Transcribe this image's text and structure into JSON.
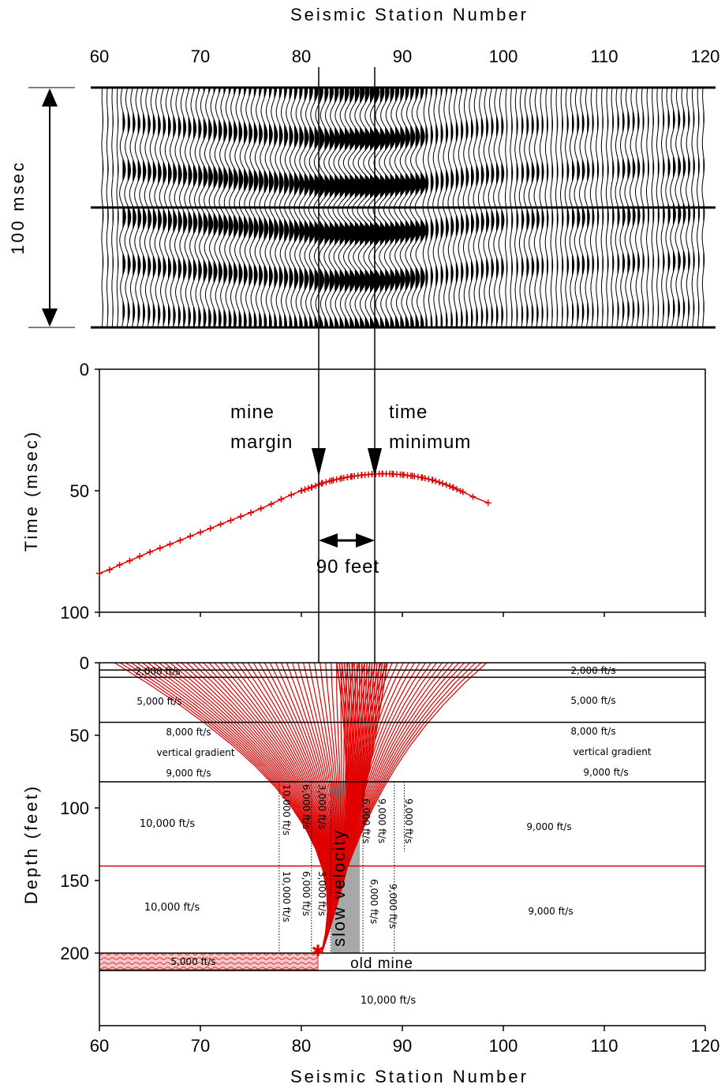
{
  "figure": {
    "top_xlabel": "Seismic Station Number",
    "bottom_xlabel": "Seismic Station Number",
    "seismogram_time_label": "100 msec",
    "time_ylabel": "Time (msec)",
    "depth_ylabel": "Depth (feet)",
    "x_ticks": [
      "60",
      "70",
      "80",
      "90",
      "100",
      "110",
      "120"
    ],
    "time_ticks": [
      "0",
      "50",
      "100"
    ],
    "depth_ticks": [
      "0",
      "50",
      "100",
      "150",
      "200"
    ],
    "annotations": {
      "mine_margin_1": "mine",
      "mine_margin_2": "margin",
      "time_min_1": "time",
      "time_min_2": "minimum",
      "distance": "90 feet",
      "slow_velocity": "slow velocity",
      "old_mine": "old mine"
    },
    "model_labels": {
      "l_2000": "2,000 ft/s",
      "r_2000": "2,000 ft/s",
      "l_5000": "5,000 ft/s",
      "r_5000": "5,000 ft/s",
      "l_8000": "8,000 ft/s",
      "r_8000": "8,000 ft/s",
      "l_vg": "vertical gradient",
      "r_vg": "vertical gradient",
      "l_9000": "9,000 ft/s",
      "r_9000": "9,000 ft/s",
      "l_10000a": "10,000 ft/s",
      "l_10000b": "10,000 ft/s",
      "r_9000a": "9,000 ft/s",
      "r_9000b": "9,000 ft/s",
      "mine_5000": "5,000 ft/s",
      "bottom_10000": "10,000 ft/s",
      "v1a": "10,000 ft/s",
      "v2a": "6,000 ft/s",
      "v3a": "3,000 ft/s",
      "v4a": "6,000 ft/s",
      "v5a": "9,000 ft/s",
      "v6a": "9,000 ft/s",
      "v1b": "10,000 ft/s",
      "v2b": "6,000 ft/s",
      "v3b": "3,000 ft/s",
      "v4b": "6,000 ft/s",
      "v5b": "9,000 ft/s"
    }
  },
  "chart_data": [
    {
      "type": "seismogram",
      "x_range": [
        60,
        120
      ],
      "span_label": "100 msec",
      "marker_stations": [
        82.2,
        87.6
      ],
      "trace_spacing_stations": 0.5,
      "red_trace": {
        "arrival_time_msec_at_station": [
          [
            60,
            84
          ],
          [
            67,
            72
          ],
          [
            75,
            58
          ],
          [
            82.2,
            46.5
          ],
          [
            87.6,
            43
          ],
          [
            92,
            45
          ],
          [
            98.5,
            55
          ]
        ]
      }
    },
    {
      "type": "scatter",
      "title": "",
      "xlabel": "",
      "ylabel": "Time (msec)",
      "xlim": [
        60,
        120
      ],
      "ylim": [
        0,
        100
      ],
      "y_inverted": true,
      "color": "#e00000",
      "x": [
        60,
        61,
        62,
        63,
        64,
        65,
        66,
        67,
        68,
        69,
        70,
        71,
        72,
        73,
        74,
        75,
        76,
        77,
        78,
        79,
        80,
        81,
        82,
        83,
        84,
        85,
        86,
        87,
        88,
        89,
        90,
        91,
        92,
        93,
        94,
        95,
        96,
        97,
        98.5
      ],
      "y": [
        84,
        82.5,
        80.5,
        78.8,
        77,
        75.2,
        73.6,
        72,
        70.4,
        68.7,
        67.1,
        65.5,
        63.8,
        62.2,
        60.6,
        59,
        57.3,
        55.5,
        53.5,
        51.7,
        50,
        48.6,
        47,
        45.8,
        44.9,
        44.1,
        43.6,
        43.2,
        43,
        43.1,
        43.4,
        43.9,
        44.6,
        45.6,
        47,
        48.6,
        50.5,
        52.5,
        55
      ]
    },
    {
      "type": "diagram",
      "xlabel": "Seismic Station Number",
      "ylabel": "Depth (feet)",
      "xlim": [
        60,
        120
      ],
      "ylim": [
        0,
        250
      ],
      "y_inverted": true,
      "layer_depths_feet": [
        5,
        10,
        41,
        82,
        140,
        200,
        212
      ],
      "slow_zone_stations": [
        83,
        86
      ],
      "old_mine_stations": [
        60,
        82
      ],
      "ray_source_station": 82,
      "ray_source_depth_feet": 200
    }
  ]
}
